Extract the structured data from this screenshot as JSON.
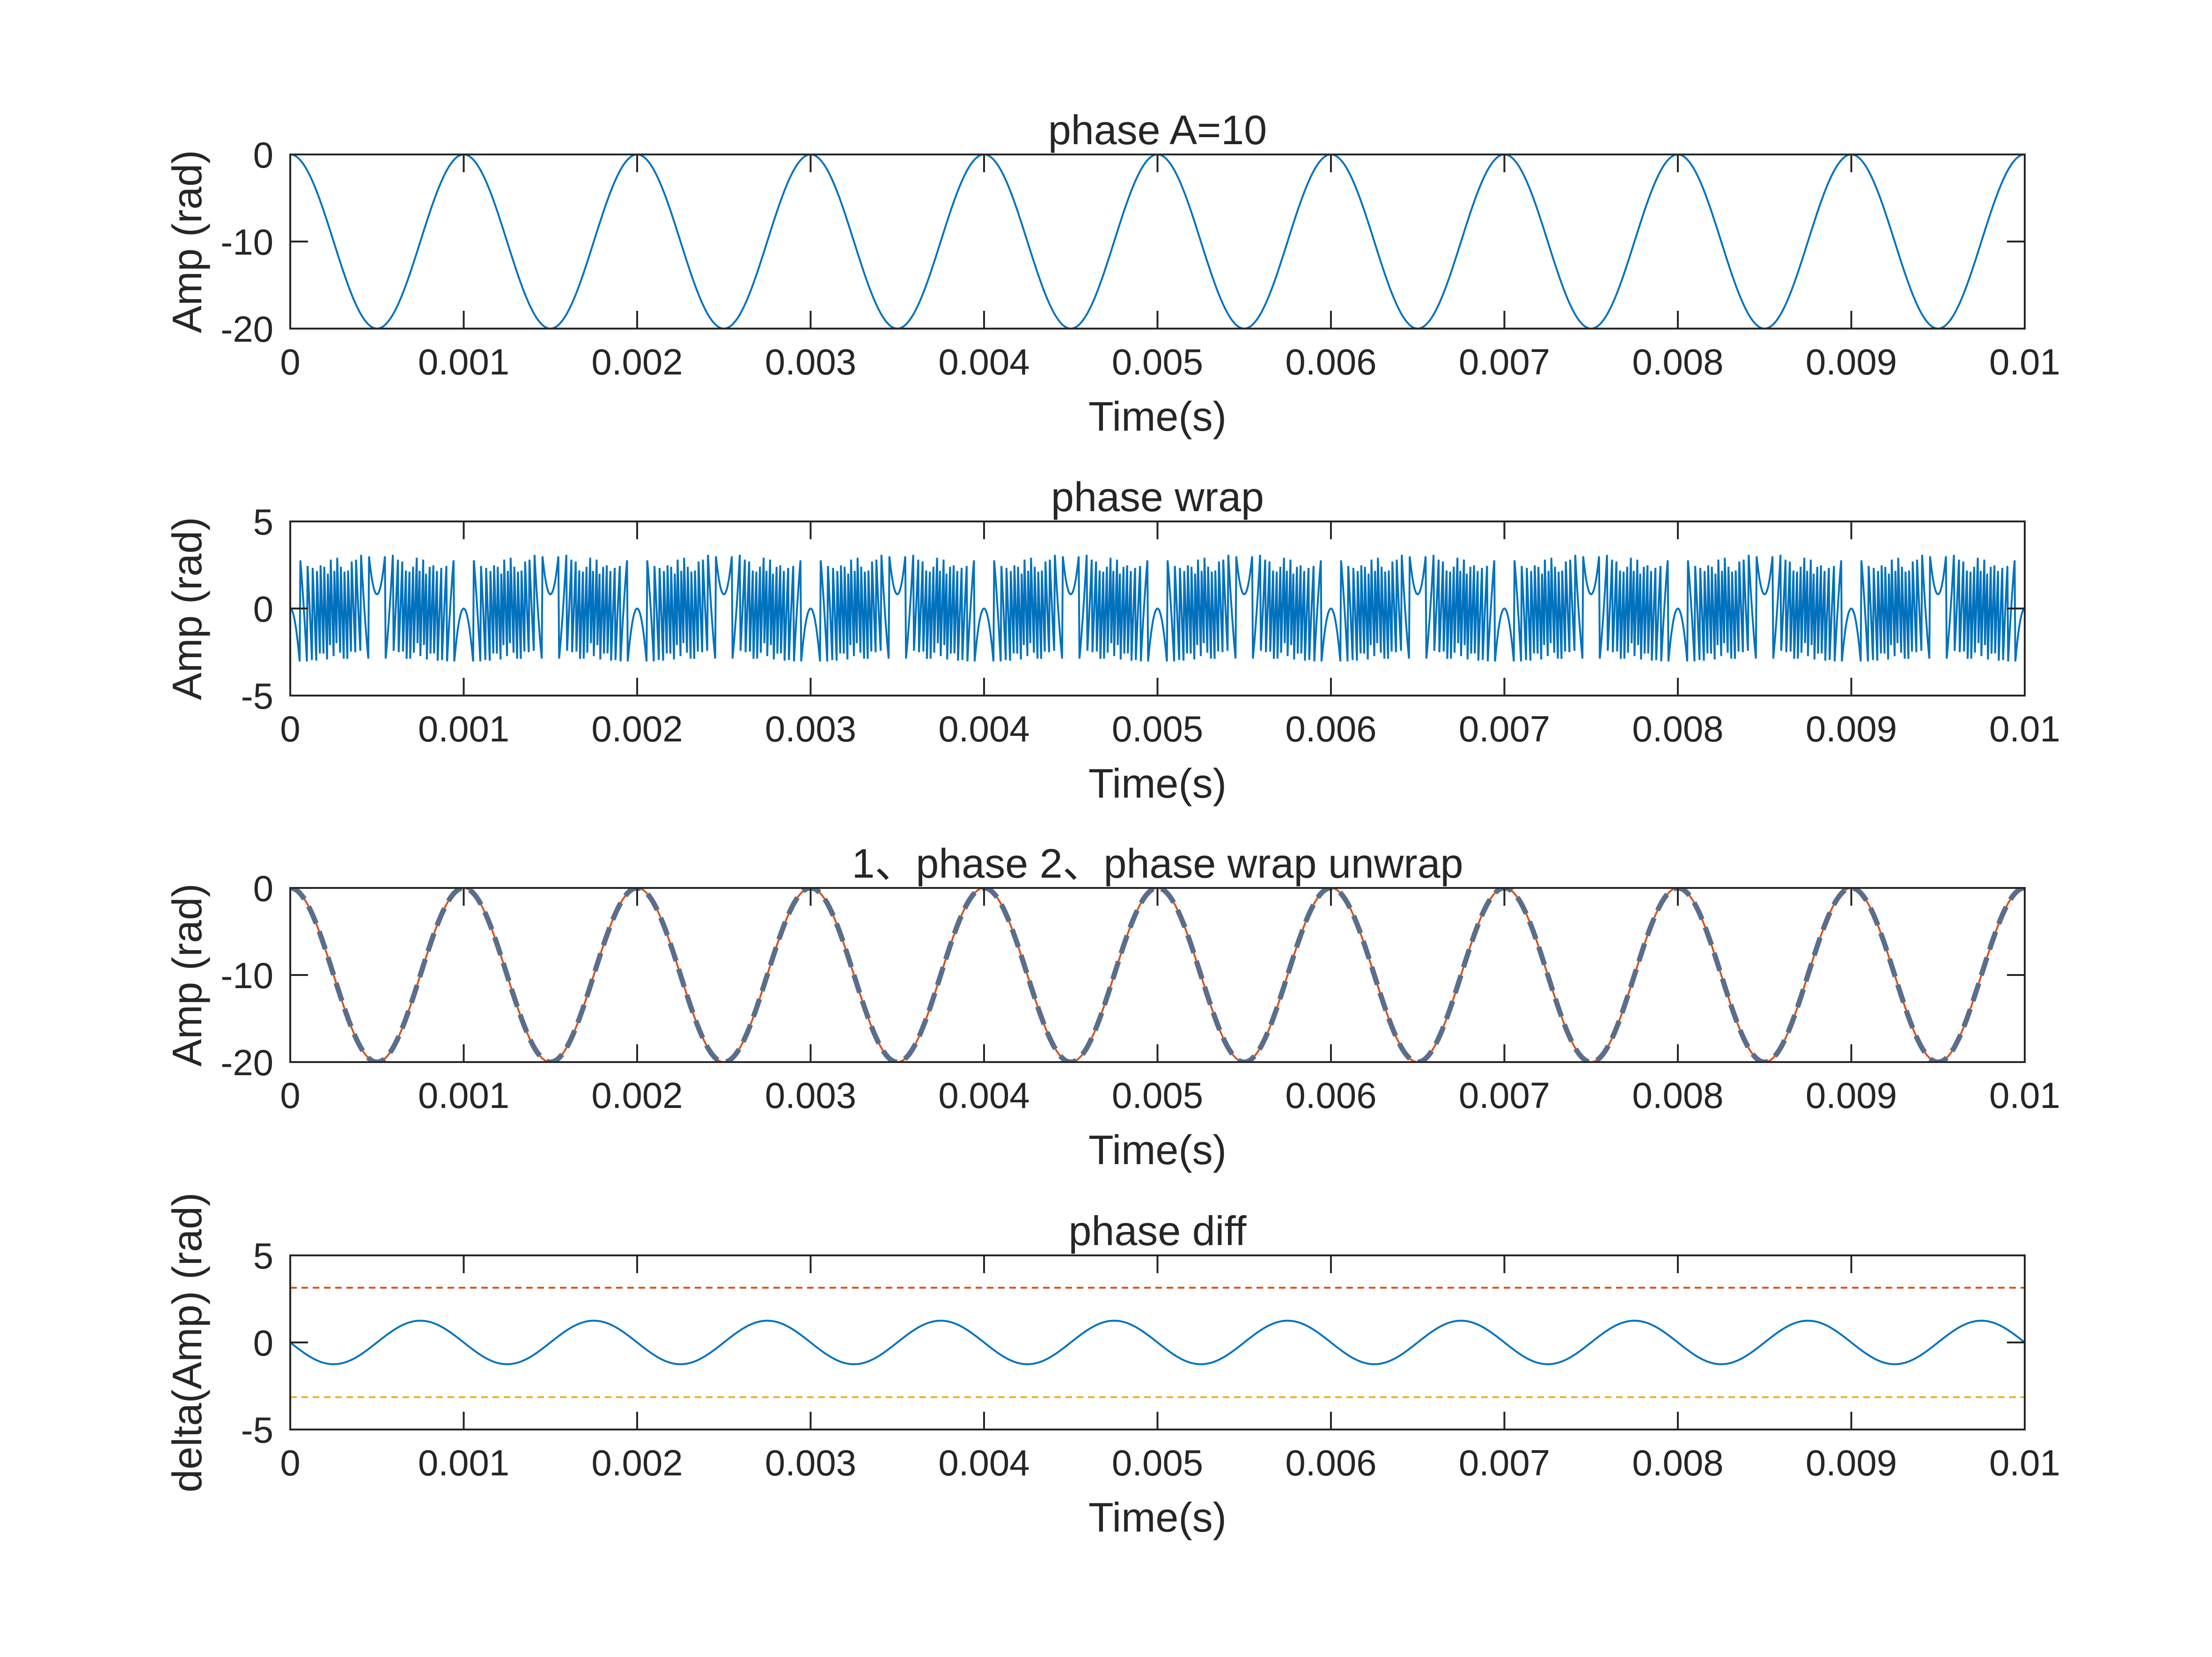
{
  "chart_data": [
    {
      "type": "line",
      "title": "phase A=10",
      "xlabel": "Time(s)",
      "ylabel": "Amp (rad)",
      "xlim": [
        0,
        0.01
      ],
      "ylim": [
        -20,
        0
      ],
      "xticks": [
        "0",
        "0.001",
        "0.002",
        "0.003",
        "0.004",
        "0.005",
        "0.006",
        "0.007",
        "0.008",
        "0.009",
        "0.01"
      ],
      "yticks": [
        "0",
        "-10",
        "-20"
      ],
      "series": [
        {
          "kind": "phase",
          "amplitude": 10,
          "offset": -10,
          "frequency_hz": 1000,
          "color": "#0072BD",
          "style": "solid"
        }
      ]
    },
    {
      "type": "line",
      "title": "phase wrap",
      "xlabel": "Time(s)",
      "ylabel": "Amp (rad)",
      "xlim": [
        0,
        0.01
      ],
      "ylim": [
        -5,
        5
      ],
      "xticks": [
        "0",
        "0.001",
        "0.002",
        "0.003",
        "0.004",
        "0.005",
        "0.006",
        "0.007",
        "0.008",
        "0.009",
        "0.01"
      ],
      "yticks": [
        "5",
        "0",
        "-5"
      ],
      "series": [
        {
          "kind": "wrapped_phase",
          "amplitude": 10,
          "offset": -10,
          "frequency_hz": 1000,
          "color": "#0072BD",
          "style": "solid"
        }
      ]
    },
    {
      "type": "line",
      "title": "1、phase 2、phase wrap unwrap",
      "xlabel": "Time(s)",
      "ylabel": "Amp (rad)",
      "xlim": [
        0,
        0.01
      ],
      "ylim": [
        -20,
        0
      ],
      "xticks": [
        "0",
        "0.001",
        "0.002",
        "0.003",
        "0.004",
        "0.005",
        "0.006",
        "0.007",
        "0.008",
        "0.009",
        "0.01"
      ],
      "yticks": [
        "0",
        "-10",
        "-20"
      ],
      "series": [
        {
          "kind": "phase",
          "amplitude": 10,
          "offset": -10,
          "frequency_hz": 1000,
          "color": "#D95319",
          "style": "solid"
        },
        {
          "kind": "phase",
          "amplitude": 10,
          "offset": -10,
          "frequency_hz": 1000,
          "color": "#5A6E8C",
          "style": "dashed"
        }
      ]
    },
    {
      "type": "line",
      "title": "phase diff",
      "xlabel": "Time(s)",
      "ylabel": "delta(Amp) (rad)",
      "xlim": [
        0,
        0.01
      ],
      "ylim": [
        -5,
        5
      ],
      "xticks": [
        "0",
        "0.001",
        "0.002",
        "0.003",
        "0.004",
        "0.005",
        "0.006",
        "0.007",
        "0.008",
        "0.009",
        "0.01"
      ],
      "yticks": [
        "5",
        "0",
        "-5"
      ],
      "series": [
        {
          "kind": "phase_diff",
          "amplitude": 1.25,
          "frequency_hz": 1000,
          "color": "#0072BD",
          "style": "solid"
        },
        {
          "kind": "constant",
          "value": 3.1416,
          "color": "#D95319",
          "style": "dashed"
        },
        {
          "kind": "constant",
          "value": -3.1416,
          "color": "#EDB120",
          "style": "dashed"
        }
      ]
    }
  ]
}
